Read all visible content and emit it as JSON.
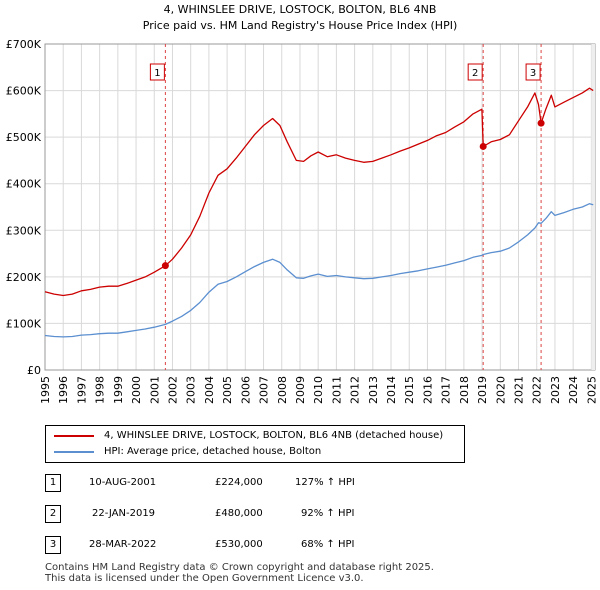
{
  "chart_data": {
    "type": "line",
    "title": "4, WHINSLEE DRIVE, LOSTOCK, BOLTON, BL6 4NB",
    "subtitle": "Price paid vs. HM Land Registry's House Price Index (HPI)",
    "xlabel": "",
    "ylabel": "",
    "xlim": [
      1995,
      2025.2
    ],
    "ylim": [
      0,
      700000
    ],
    "grid": true,
    "x_ticks": [
      "1995",
      "1996",
      "1997",
      "1998",
      "1999",
      "2000",
      "2001",
      "2002",
      "2003",
      "2004",
      "2005",
      "2006",
      "2007",
      "2008",
      "2009",
      "2010",
      "2011",
      "2012",
      "2013",
      "2014",
      "2015",
      "2016",
      "2017",
      "2018",
      "2019",
      "2020",
      "2021",
      "2022",
      "2023",
      "2024",
      "2025"
    ],
    "y_ticks": [
      {
        "value": 0,
        "label": "£0"
      },
      {
        "value": 100000,
        "label": "£100K"
      },
      {
        "value": 200000,
        "label": "£200K"
      },
      {
        "value": 300000,
        "label": "£300K"
      },
      {
        "value": 400000,
        "label": "£400K"
      },
      {
        "value": 500000,
        "label": "£500K"
      },
      {
        "value": 600000,
        "label": "£600K"
      },
      {
        "value": 700000,
        "label": "£700K"
      }
    ],
    "series": [
      {
        "name": "4, WHINSLEE DRIVE, LOSTOCK, BOLTON, BL6 4NB (detached house)",
        "color": "#cc0000",
        "x": [
          1995.0,
          1995.5,
          1996.0,
          1996.5,
          1997.0,
          1997.5,
          1998.0,
          1998.5,
          1999.0,
          1999.5,
          2000.0,
          2000.5,
          2001.0,
          2001.61,
          2002.0,
          2002.5,
          2003.0,
          2003.5,
          2004.0,
          2004.5,
          2005.0,
          2005.5,
          2006.0,
          2006.5,
          2007.0,
          2007.5,
          2007.9,
          2008.3,
          2008.8,
          2009.2,
          2009.6,
          2010.0,
          2010.5,
          2011.0,
          2011.5,
          2012.0,
          2012.5,
          2013.0,
          2013.5,
          2014.0,
          2014.5,
          2015.0,
          2015.5,
          2016.0,
          2016.5,
          2017.0,
          2017.5,
          2018.0,
          2018.5,
          2018.99,
          2019.06,
          2019.5,
          2020.0,
          2020.5,
          2021.0,
          2021.5,
          2021.9,
          2022.1,
          2022.24,
          2022.5,
          2022.8,
          2023.0,
          2023.5,
          2024.0,
          2024.5,
          2024.9,
          2025.1
        ],
        "values": [
          168000,
          163000,
          160000,
          163000,
          170000,
          173000,
          178000,
          180000,
          180000,
          186000,
          193000,
          200000,
          210000,
          224000,
          238000,
          262000,
          290000,
          330000,
          380000,
          418000,
          432000,
          455000,
          480000,
          505000,
          525000,
          540000,
          525000,
          490000,
          450000,
          448000,
          460000,
          468000,
          458000,
          462000,
          455000,
          450000,
          446000,
          448000,
          455000,
          462000,
          470000,
          477000,
          485000,
          493000,
          503000,
          510000,
          522000,
          533000,
          550000,
          560000,
          480000,
          490000,
          495000,
          505000,
          535000,
          565000,
          595000,
          570000,
          530000,
          560000,
          590000,
          565000,
          575000,
          585000,
          595000,
          605000,
          600000
        ]
      },
      {
        "name": "HPI: Average price, detached house, Bolton",
        "color": "#5b8fd0",
        "x": [
          1995.0,
          1995.5,
          1996.0,
          1996.5,
          1997.0,
          1997.5,
          1998.0,
          1998.5,
          1999.0,
          1999.5,
          2000.0,
          2000.5,
          2001.0,
          2001.61,
          2002.0,
          2002.5,
          2003.0,
          2003.5,
          2004.0,
          2004.5,
          2005.0,
          2005.5,
          2006.0,
          2006.5,
          2007.0,
          2007.5,
          2007.9,
          2008.3,
          2008.8,
          2009.2,
          2009.6,
          2010.0,
          2010.5,
          2011.0,
          2011.5,
          2012.0,
          2012.5,
          2013.0,
          2013.5,
          2014.0,
          2014.5,
          2015.0,
          2015.5,
          2016.0,
          2016.5,
          2017.0,
          2017.5,
          2018.0,
          2018.5,
          2018.99,
          2019.06,
          2019.5,
          2020.0,
          2020.5,
          2021.0,
          2021.5,
          2021.9,
          2022.1,
          2022.24,
          2022.5,
          2022.8,
          2023.0,
          2023.5,
          2024.0,
          2024.5,
          2024.9,
          2025.1
        ],
        "values": [
          74000,
          72000,
          71000,
          72000,
          75000,
          76000,
          78000,
          79000,
          79000,
          82000,
          85000,
          88000,
          92000,
          98000,
          105000,
          115000,
          128000,
          145000,
          167000,
          184000,
          190000,
          200000,
          211000,
          222000,
          231000,
          238000,
          231000,
          215000,
          198000,
          197000,
          202000,
          206000,
          201000,
          203000,
          200000,
          198000,
          196000,
          197000,
          200000,
          203000,
          207000,
          210000,
          213000,
          217000,
          221000,
          225000,
          230000,
          235000,
          242000,
          246000,
          248000,
          252000,
          255000,
          262000,
          275000,
          290000,
          305000,
          316000,
          315000,
          325000,
          340000,
          332000,
          338000,
          345000,
          350000,
          357000,
          355000
        ]
      }
    ],
    "sales": [
      {
        "label": "1",
        "x": 2001.61,
        "value": 224000,
        "date": "10-AUG-2001",
        "price": "£224,000",
        "hpi_change": "127% ↑ HPI"
      },
      {
        "label": "2",
        "x": 2019.06,
        "value": 480000,
        "date": "22-JAN-2019",
        "price": "£480,000",
        "hpi_change": "92% ↑ HPI"
      },
      {
        "label": "3",
        "x": 2022.24,
        "value": 530000,
        "date": "28-MAR-2022",
        "price": "£530,000",
        "hpi_change": "68% ↑ HPI"
      }
    ]
  },
  "footer": {
    "line1": "Contains HM Land Registry data © Crown copyright and database right 2025.",
    "line2": "This data is licensed under the Open Government Licence v3.0."
  }
}
